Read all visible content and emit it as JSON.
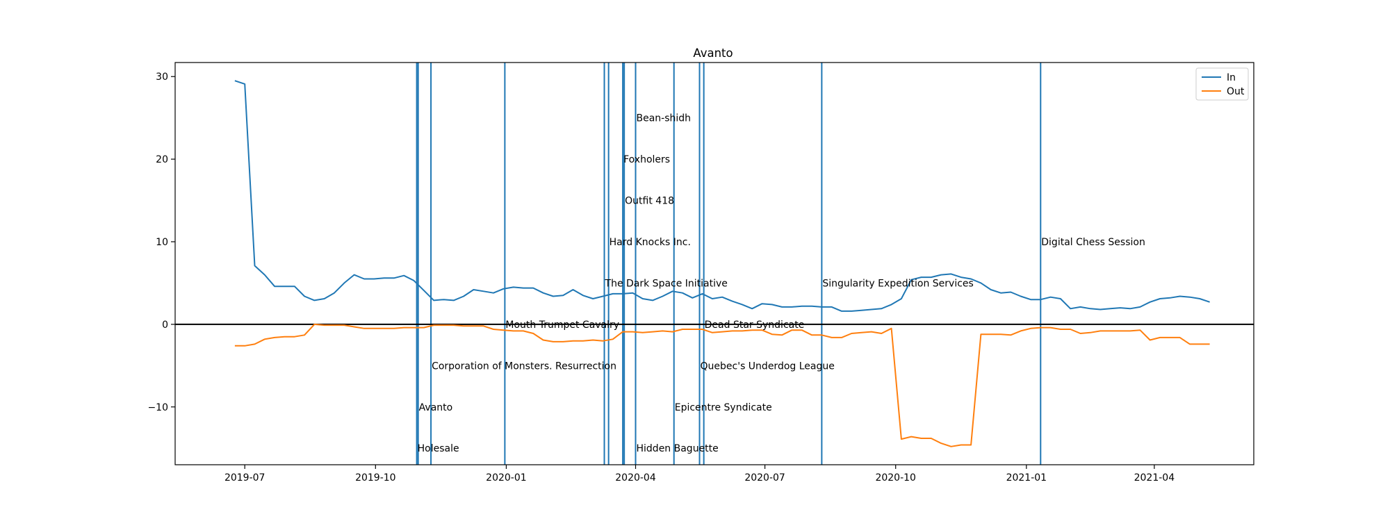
{
  "chart_data": {
    "type": "line",
    "title": "Avanto",
    "xlabel": "",
    "ylabel": "",
    "x_range": [
      "2019-05-13",
      "2021-06-10"
    ],
    "ylim": [
      -17,
      31.7
    ],
    "grid": false,
    "legend": {
      "placement": "top-right",
      "entries": [
        "In",
        "Out"
      ]
    },
    "x_ticks": [
      {
        "date": "2019-07-01",
        "label": "2019-07"
      },
      {
        "date": "2019-10-01",
        "label": "2019-10"
      },
      {
        "date": "2020-01-01",
        "label": "2020-01"
      },
      {
        "date": "2020-04-01",
        "label": "2020-04"
      },
      {
        "date": "2020-07-01",
        "label": "2020-07"
      },
      {
        "date": "2020-10-01",
        "label": "2020-10"
      },
      {
        "date": "2021-01-01",
        "label": "2021-01"
      },
      {
        "date": "2021-04-01",
        "label": "2021-04"
      }
    ],
    "y_ticks": [
      {
        "value": 30,
        "label": "30"
      },
      {
        "value": 20,
        "label": "20"
      },
      {
        "value": 10,
        "label": "10"
      },
      {
        "value": 0,
        "label": "0"
      },
      {
        "value": -10,
        "label": "−10"
      }
    ],
    "zero_line": 0,
    "series": [
      {
        "name": "In",
        "color": "#1f77b4",
        "points": [
          [
            "2019-06-24",
            29.5
          ],
          [
            "2019-07-01",
            29.1
          ],
          [
            "2019-07-08",
            7.1
          ],
          [
            "2019-07-15",
            6.0
          ],
          [
            "2019-07-22",
            4.6
          ],
          [
            "2019-07-29",
            4.6
          ],
          [
            "2019-08-05",
            4.6
          ],
          [
            "2019-08-12",
            3.4
          ],
          [
            "2019-08-19",
            2.9
          ],
          [
            "2019-08-26",
            3.1
          ],
          [
            "2019-09-02",
            3.8
          ],
          [
            "2019-09-09",
            5.0
          ],
          [
            "2019-09-16",
            6.0
          ],
          [
            "2019-09-23",
            5.5
          ],
          [
            "2019-09-30",
            5.5
          ],
          [
            "2019-10-07",
            5.6
          ],
          [
            "2019-10-14",
            5.6
          ],
          [
            "2019-10-21",
            5.9
          ],
          [
            "2019-10-28",
            5.3
          ],
          [
            "2019-11-04",
            4.1
          ],
          [
            "2019-11-11",
            2.9
          ],
          [
            "2019-11-18",
            3.0
          ],
          [
            "2019-11-25",
            2.9
          ],
          [
            "2019-12-02",
            3.4
          ],
          [
            "2019-12-09",
            4.2
          ],
          [
            "2019-12-16",
            4.0
          ],
          [
            "2019-12-23",
            3.8
          ],
          [
            "2019-12-30",
            4.3
          ],
          [
            "2020-01-06",
            4.5
          ],
          [
            "2020-01-13",
            4.4
          ],
          [
            "2020-01-20",
            4.4
          ],
          [
            "2020-01-27",
            3.8
          ],
          [
            "2020-02-03",
            3.4
          ],
          [
            "2020-02-10",
            3.5
          ],
          [
            "2020-02-17",
            4.2
          ],
          [
            "2020-02-24",
            3.5
          ],
          [
            "2020-03-02",
            3.1
          ],
          [
            "2020-03-09",
            3.4
          ],
          [
            "2020-03-16",
            3.7
          ],
          [
            "2020-03-23",
            3.7
          ],
          [
            "2020-03-30",
            3.8
          ],
          [
            "2020-04-06",
            3.1
          ],
          [
            "2020-04-13",
            2.9
          ],
          [
            "2020-04-20",
            3.4
          ],
          [
            "2020-04-27",
            4.0
          ],
          [
            "2020-05-04",
            3.8
          ],
          [
            "2020-05-11",
            3.2
          ],
          [
            "2020-05-18",
            3.7
          ],
          [
            "2020-05-25",
            3.1
          ],
          [
            "2020-06-01",
            3.3
          ],
          [
            "2020-06-08",
            2.8
          ],
          [
            "2020-06-15",
            2.4
          ],
          [
            "2020-06-22",
            1.9
          ],
          [
            "2020-06-29",
            2.5
          ],
          [
            "2020-07-06",
            2.4
          ],
          [
            "2020-07-13",
            2.1
          ],
          [
            "2020-07-20",
            2.1
          ],
          [
            "2020-07-27",
            2.2
          ],
          [
            "2020-08-03",
            2.2
          ],
          [
            "2020-08-10",
            2.1
          ],
          [
            "2020-08-17",
            2.1
          ],
          [
            "2020-08-24",
            1.6
          ],
          [
            "2020-08-31",
            1.6
          ],
          [
            "2020-09-07",
            1.7
          ],
          [
            "2020-09-14",
            1.8
          ],
          [
            "2020-09-21",
            1.9
          ],
          [
            "2020-09-28",
            2.4
          ],
          [
            "2020-10-05",
            3.1
          ],
          [
            "2020-10-12",
            5.4
          ],
          [
            "2020-10-19",
            5.7
          ],
          [
            "2020-10-26",
            5.7
          ],
          [
            "2020-11-02",
            6.0
          ],
          [
            "2020-11-09",
            6.1
          ],
          [
            "2020-11-16",
            5.7
          ],
          [
            "2020-11-23",
            5.5
          ],
          [
            "2020-11-30",
            5.0
          ],
          [
            "2020-12-07",
            4.2
          ],
          [
            "2020-12-14",
            3.8
          ],
          [
            "2020-12-21",
            3.9
          ],
          [
            "2020-12-28",
            3.4
          ],
          [
            "2021-01-04",
            3.0
          ],
          [
            "2021-01-11",
            3.0
          ],
          [
            "2021-01-18",
            3.3
          ],
          [
            "2021-01-25",
            3.1
          ],
          [
            "2021-02-01",
            1.9
          ],
          [
            "2021-02-08",
            2.1
          ],
          [
            "2021-02-15",
            1.9
          ],
          [
            "2021-02-22",
            1.8
          ],
          [
            "2021-03-01",
            1.9
          ],
          [
            "2021-03-08",
            2.0
          ],
          [
            "2021-03-15",
            1.9
          ],
          [
            "2021-03-22",
            2.1
          ],
          [
            "2021-03-29",
            2.7
          ],
          [
            "2021-04-05",
            3.1
          ],
          [
            "2021-04-12",
            3.2
          ],
          [
            "2021-04-19",
            3.4
          ],
          [
            "2021-04-26",
            3.3
          ],
          [
            "2021-05-03",
            3.1
          ],
          [
            "2021-05-10",
            2.7
          ]
        ]
      },
      {
        "name": "Out",
        "color": "#ff7f0e",
        "points": [
          [
            "2019-06-24",
            -2.6
          ],
          [
            "2019-07-01",
            -2.6
          ],
          [
            "2019-07-08",
            -2.4
          ],
          [
            "2019-07-15",
            -1.8
          ],
          [
            "2019-07-22",
            -1.6
          ],
          [
            "2019-07-29",
            -1.5
          ],
          [
            "2019-08-05",
            -1.5
          ],
          [
            "2019-08-12",
            -1.3
          ],
          [
            "2019-08-19",
            0.0
          ],
          [
            "2019-08-26",
            -0.1
          ],
          [
            "2019-09-02",
            -0.1
          ],
          [
            "2019-09-09",
            -0.1
          ],
          [
            "2019-09-16",
            -0.3
          ],
          [
            "2019-09-23",
            -0.5
          ],
          [
            "2019-09-30",
            -0.5
          ],
          [
            "2019-10-07",
            -0.5
          ],
          [
            "2019-10-14",
            -0.5
          ],
          [
            "2019-10-21",
            -0.4
          ],
          [
            "2019-10-28",
            -0.4
          ],
          [
            "2019-11-04",
            -0.4
          ],
          [
            "2019-11-11",
            -0.1
          ],
          [
            "2019-11-18",
            -0.1
          ],
          [
            "2019-11-25",
            -0.1
          ],
          [
            "2019-12-02",
            -0.2
          ],
          [
            "2019-12-09",
            -0.2
          ],
          [
            "2019-12-16",
            -0.2
          ],
          [
            "2019-12-23",
            -0.6
          ],
          [
            "2019-12-30",
            -0.7
          ],
          [
            "2020-01-06",
            -0.8
          ],
          [
            "2020-01-13",
            -0.8
          ],
          [
            "2020-01-20",
            -1.1
          ],
          [
            "2020-01-27",
            -1.9
          ],
          [
            "2020-02-03",
            -2.1
          ],
          [
            "2020-02-10",
            -2.1
          ],
          [
            "2020-02-17",
            -2.0
          ],
          [
            "2020-02-24",
            -2.0
          ],
          [
            "2020-03-02",
            -1.9
          ],
          [
            "2020-03-09",
            -2.0
          ],
          [
            "2020-03-16",
            -1.8
          ],
          [
            "2020-03-23",
            -0.9
          ],
          [
            "2020-03-30",
            -0.9
          ],
          [
            "2020-04-06",
            -1.0
          ],
          [
            "2020-04-13",
            -0.9
          ],
          [
            "2020-04-20",
            -0.8
          ],
          [
            "2020-04-27",
            -0.9
          ],
          [
            "2020-05-04",
            -0.6
          ],
          [
            "2020-05-11",
            -0.6
          ],
          [
            "2020-05-18",
            -0.6
          ],
          [
            "2020-05-25",
            -1.0
          ],
          [
            "2020-06-01",
            -0.9
          ],
          [
            "2020-06-08",
            -0.8
          ],
          [
            "2020-06-15",
            -0.8
          ],
          [
            "2020-06-22",
            -0.7
          ],
          [
            "2020-06-29",
            -0.7
          ],
          [
            "2020-07-06",
            -1.2
          ],
          [
            "2020-07-13",
            -1.3
          ],
          [
            "2020-07-20",
            -0.7
          ],
          [
            "2020-07-27",
            -0.7
          ],
          [
            "2020-08-03",
            -1.3
          ],
          [
            "2020-08-10",
            -1.3
          ],
          [
            "2020-08-17",
            -1.6
          ],
          [
            "2020-08-24",
            -1.6
          ],
          [
            "2020-08-31",
            -1.1
          ],
          [
            "2020-09-07",
            -1.0
          ],
          [
            "2020-09-14",
            -0.9
          ],
          [
            "2020-09-21",
            -1.1
          ],
          [
            "2020-09-28",
            -0.5
          ],
          [
            "2020-10-05",
            -13.9
          ],
          [
            "2020-10-12",
            -13.6
          ],
          [
            "2020-10-19",
            -13.8
          ],
          [
            "2020-10-26",
            -13.8
          ],
          [
            "2020-11-02",
            -14.4
          ],
          [
            "2020-11-09",
            -14.8
          ],
          [
            "2020-11-16",
            -14.6
          ],
          [
            "2020-11-23",
            -14.6
          ],
          [
            "2020-11-30",
            -1.2
          ],
          [
            "2020-12-07",
            -1.2
          ],
          [
            "2020-12-14",
            -1.2
          ],
          [
            "2020-12-21",
            -1.3
          ],
          [
            "2020-12-28",
            -0.8
          ],
          [
            "2021-01-04",
            -0.5
          ],
          [
            "2021-01-11",
            -0.4
          ],
          [
            "2021-01-18",
            -0.4
          ],
          [
            "2021-01-25",
            -0.6
          ],
          [
            "2021-02-01",
            -0.6
          ],
          [
            "2021-02-08",
            -1.1
          ],
          [
            "2021-02-15",
            -1.0
          ],
          [
            "2021-02-22",
            -0.8
          ],
          [
            "2021-03-01",
            -0.8
          ],
          [
            "2021-03-08",
            -0.8
          ],
          [
            "2021-03-15",
            -0.8
          ],
          [
            "2021-03-22",
            -0.7
          ],
          [
            "2021-03-29",
            -1.9
          ],
          [
            "2021-04-05",
            -1.6
          ],
          [
            "2021-04-12",
            -1.6
          ],
          [
            "2021-04-19",
            -1.6
          ],
          [
            "2021-04-26",
            -2.4
          ],
          [
            "2021-05-03",
            -2.4
          ],
          [
            "2021-05-10",
            -2.4
          ]
        ]
      }
    ],
    "events": [
      {
        "date": "2019-10-31",
        "label": "Avanto",
        "y": -10
      },
      {
        "date": "2019-10-30",
        "label": "Holesale",
        "y": -15
      },
      {
        "date": "2019-11-09",
        "label": "Corporation of Monsters. Resurrection",
        "y": -5
      },
      {
        "date": "2019-12-31",
        "label": "Mouth Trumpet Cavalry",
        "y": 0
      },
      {
        "date": "2020-03-10",
        "label": "The Dark Space Initiative",
        "y": 5
      },
      {
        "date": "2020-03-13",
        "label": "Hard Knocks Inc.",
        "y": 10
      },
      {
        "date": "2020-03-23",
        "label": "Foxholers",
        "y": 20
      },
      {
        "date": "2020-03-24",
        "label": "Outfit 418",
        "y": 15
      },
      {
        "date": "2020-04-01",
        "label": "Bean-shidh",
        "y": 25
      },
      {
        "date": "2020-04-01",
        "label": "Hidden Baguette",
        "y": -15
      },
      {
        "date": "2020-04-28",
        "label": "Epicentre Syndicate",
        "y": -10
      },
      {
        "date": "2020-05-16",
        "label": "Quebec's Underdog League",
        "y": -5
      },
      {
        "date": "2020-05-19",
        "label": "Dead Star Syndicate",
        "y": 0
      },
      {
        "date": "2020-08-10",
        "label": "Singularity Expedition Services",
        "y": 5
      },
      {
        "date": "2021-01-11",
        "label": "Digital Chess Session",
        "y": 10
      }
    ]
  }
}
